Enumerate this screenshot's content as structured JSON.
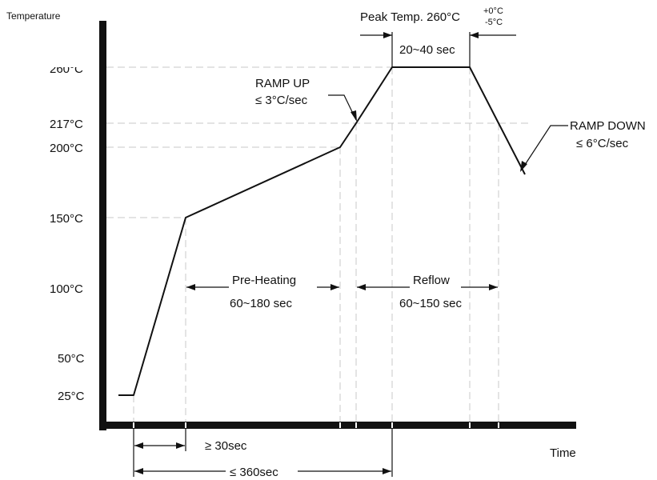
{
  "axes": {
    "y_title": "Temperature",
    "x_title": "Time",
    "y_ticks": [
      "25°C",
      "50°C",
      "100°C",
      "150°C",
      "200°C",
      "217°C",
      "260°C"
    ]
  },
  "labels": {
    "peak_temp": "Peak Temp. 260°C",
    "peak_tol_plus": "+0°C",
    "peak_tol_minus": "-5°C",
    "peak_time": "20~40 sec",
    "ramp_up_line1": "RAMP UP",
    "ramp_up_line2": "≤ 3°C/sec",
    "ramp_down_line1": "RAMP DOWN",
    "ramp_down_line2": "≤ 6°C/sec",
    "preheat_title": "Pre-Heating",
    "preheat_time": "60~180 sec",
    "reflow_title": "Reflow",
    "reflow_time": "60~150 sec",
    "min_ramp_time": "≥ 30sec",
    "total_time": "≤ 360sec"
  },
  "profile_temps_c": [
    25,
    25,
    150,
    200,
    217,
    260,
    260,
    217,
    180
  ]
}
